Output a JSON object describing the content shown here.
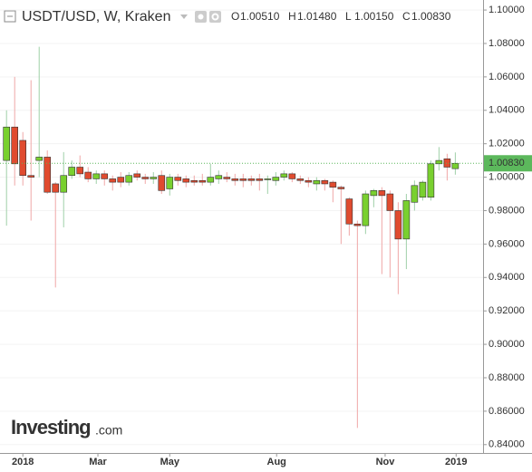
{
  "header": {
    "symbol": "USDT/USD, W, Kraken",
    "ohlc": [
      {
        "key": "O",
        "value": "1.00510"
      },
      {
        "key": "H",
        "value": "1.01480"
      },
      {
        "key": "L",
        "value": "1.00150"
      },
      {
        "key": "C",
        "value": "1.00830"
      }
    ]
  },
  "logo": {
    "main": "Investing",
    "suffix": ".com"
  },
  "chart_data": {
    "type": "candlestick",
    "x": [
      0,
      1,
      2,
      3,
      4,
      5,
      6,
      7,
      8,
      9,
      10,
      11,
      12,
      13,
      14,
      15,
      16,
      17,
      18,
      19,
      20,
      21,
      22,
      23,
      24,
      25,
      26,
      27,
      28,
      29,
      30,
      31,
      32,
      33,
      34,
      35,
      36,
      37,
      38,
      39,
      40,
      41,
      42,
      43,
      44,
      45,
      46,
      47,
      48,
      49,
      50,
      51,
      52,
      53,
      54,
      55
    ],
    "open": [
      1.01,
      1.03,
      1.022,
      1.001,
      1.01,
      1.012,
      0.996,
      0.991,
      1.001,
      1.006,
      1.003,
      0.999,
      1.002,
      0.999,
      1.0,
      0.997,
      1.002,
      1.0,
      0.999,
      1.001,
      0.993,
      1.0,
      0.999,
      0.998,
      0.998,
      0.997,
      0.999,
      1.0,
      0.999,
      0.999,
      0.999,
      0.999,
      0.999,
      0.998,
      1.0,
      1.002,
      0.999,
      0.998,
      0.996,
      0.998,
      0.997,
      0.994,
      0.987,
      0.972,
      0.971,
      0.989,
      0.992,
      0.99,
      0.98,
      0.963,
      0.985,
      0.988,
      0.988,
      1.008,
      1.011,
      1.0051
    ],
    "high": [
      1.04,
      1.06,
      1.027,
      1.058,
      1.078,
      1.016,
      0.997,
      1.015,
      1.01,
      1.013,
      1.006,
      1.004,
      1.004,
      1.001,
      1.003,
      1.003,
      1.004,
      1.002,
      1.003,
      1.004,
      1.002,
      1.002,
      1.001,
      1.001,
      1.002,
      1.008,
      1.004,
      1.003,
      1.002,
      1.002,
      1.001,
      1.002,
      1.001,
      1.003,
      1.004,
      1.003,
      1.001,
      1.0,
      1.0,
      0.999,
      0.998,
      0.995,
      0.988,
      0.974,
      0.992,
      0.993,
      0.994,
      0.992,
      0.985,
      0.99,
      0.998,
      0.998,
      1.01,
      1.018,
      1.014,
      1.0148
    ],
    "low": [
      0.971,
      0.995,
      0.995,
      0.974,
      1.0,
      0.99,
      0.934,
      0.97,
      0.999,
      1.0,
      0.997,
      0.996,
      0.995,
      0.992,
      0.994,
      0.995,
      0.998,
      0.996,
      0.996,
      0.99,
      0.989,
      0.995,
      0.994,
      0.995,
      0.995,
      0.995,
      0.996,
      0.997,
      0.995,
      0.994,
      0.995,
      0.992,
      0.99,
      0.995,
      0.998,
      0.997,
      0.996,
      0.994,
      0.992,
      0.992,
      0.985,
      0.96,
      0.965,
      0.85,
      0.966,
      0.982,
      0.942,
      0.94,
      0.93,
      0.945,
      0.98,
      0.986,
      0.986,
      1.004,
      0.998,
      1.0015
    ],
    "close": [
      1.03,
      1.008,
      1.001,
      1.0,
      1.012,
      0.991,
      0.991,
      1.001,
      1.006,
      1.002,
      0.999,
      1.002,
      0.999,
      0.997,
      0.997,
      1.001,
      1.0,
      0.999,
      1.0,
      0.992,
      1.0,
      0.998,
      0.997,
      0.997,
      0.997,
      1.0,
      1.001,
      0.999,
      0.998,
      0.998,
      0.998,
      0.998,
      0.999,
      1.0,
      1.002,
      0.999,
      0.998,
      0.997,
      0.998,
      0.996,
      0.994,
      0.993,
      0.972,
      0.971,
      0.99,
      0.992,
      0.989,
      0.98,
      0.963,
      0.986,
      0.995,
      0.997,
      1.008,
      1.01,
      1.006,
      1.0083
    ],
    "up_color": "#79d02f",
    "down_color": "#e04b2f",
    "up_wick_color": "#9fd0a8",
    "down_wick_color": "#f0a7a7",
    "xlim": [
      -0.8,
      58.4
    ],
    "xticks": [
      {
        "value": 2,
        "label": "2018"
      },
      {
        "value": 11.2,
        "label": "Mar"
      },
      {
        "value": 20,
        "label": "May"
      },
      {
        "value": 33.1,
        "label": "Aug"
      },
      {
        "value": 46.4,
        "label": "Nov"
      },
      {
        "value": 55.1,
        "label": "2019"
      }
    ],
    "ylim": [
      0.835,
      1.106
    ],
    "yticks": [
      {
        "value": 0.84,
        "label": "0.84000"
      },
      {
        "value": 0.86,
        "label": "0.86000"
      },
      {
        "value": 0.88,
        "label": "0.88000"
      },
      {
        "value": 0.9,
        "label": "0.90000"
      },
      {
        "value": 0.92,
        "label": "0.92000"
      },
      {
        "value": 0.94,
        "label": "0.94000"
      },
      {
        "value": 0.96,
        "label": "0.96000"
      },
      {
        "value": 0.98,
        "label": "0.98000"
      },
      {
        "value": 1.0,
        "label": "1.00000"
      },
      {
        "value": 1.02,
        "label": "1.02000"
      },
      {
        "value": 1.04,
        "label": "1.04000"
      },
      {
        "value": 1.06,
        "label": "1.06000"
      },
      {
        "value": 1.08,
        "label": "1.08000"
      },
      {
        "value": 1.1,
        "label": "1.10000"
      }
    ],
    "grid": true,
    "last_price": {
      "value": 1.0083,
      "label": "1.00830",
      "color": "#5cb85c"
    }
  }
}
